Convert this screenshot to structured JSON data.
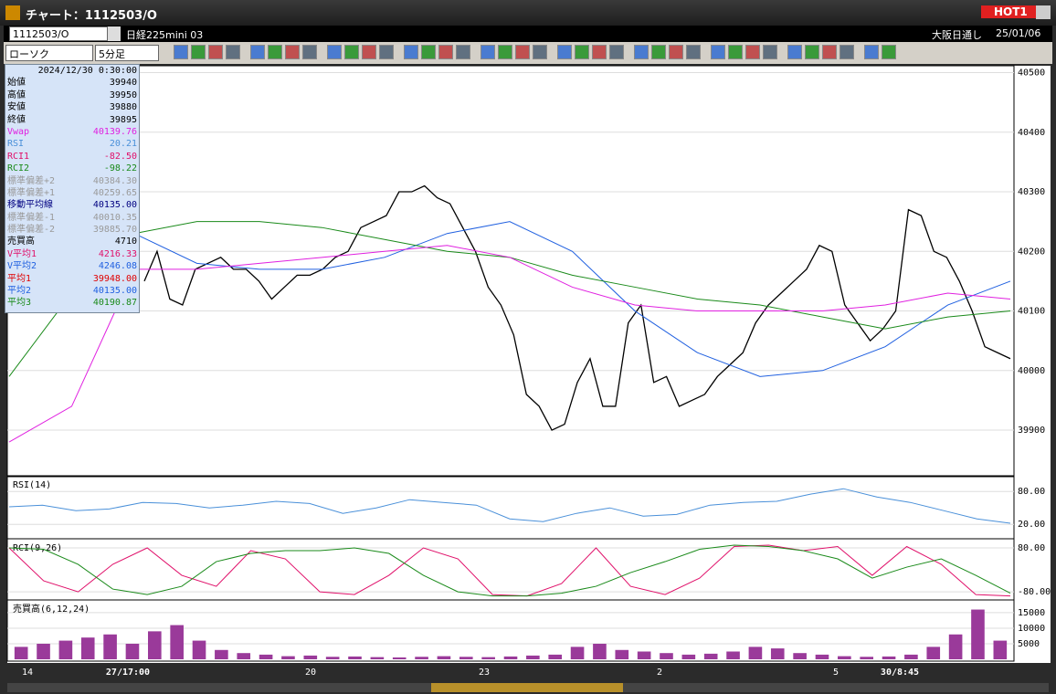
{
  "window": {
    "title": "チャート：1112503/O",
    "badge": "HOT1"
  },
  "toolbar": {
    "symbol": "1112503/O",
    "instrument": "日経225mini 03",
    "session": "大阪日通し",
    "date": "25/01/06",
    "chart_style": "ローソク",
    "interval": "5分足"
  },
  "info_panel": {
    "datetime": "2024/12/30 0:30:00",
    "rows": [
      {
        "label": "始値",
        "value": "39940",
        "color": "#000000"
      },
      {
        "label": "高値",
        "value": "39950",
        "color": "#000000"
      },
      {
        "label": "安値",
        "value": "39880",
        "color": "#000000"
      },
      {
        "label": "終値",
        "value": "39895",
        "color": "#000000"
      },
      {
        "label": "Vwap",
        "value": "40139.76",
        "color": "#e020e0"
      },
      {
        "label": "RSI",
        "value": "20.21",
        "color": "#4a90d9"
      },
      {
        "label": "RCI1",
        "value": "-82.50",
        "color": "#e0106a"
      },
      {
        "label": "RCI2",
        "value": "-98.22",
        "color": "#1a8a1a"
      },
      {
        "label": "標準偏差+2",
        "value": "40384.30",
        "color": "#9a9a9a"
      },
      {
        "label": "標準偏差+1",
        "value": "40259.65",
        "color": "#9a9a9a"
      },
      {
        "label": "移動平均線",
        "value": "40135.00",
        "color": "#000080"
      },
      {
        "label": "標準偏差-1",
        "value": "40010.35",
        "color": "#9a9a9a"
      },
      {
        "label": "標準偏差-2",
        "value": "39885.70",
        "color": "#9a9a9a"
      },
      {
        "label": "売買高",
        "value": "4710",
        "color": "#000000"
      },
      {
        "label": "V平均1",
        "value": "4216.33",
        "color": "#e0106a"
      },
      {
        "label": "V平均2",
        "value": "4246.08",
        "color": "#2060e0"
      },
      {
        "label": "平均1",
        "value": "39948.00",
        "color": "#e00000"
      },
      {
        "label": "平均2",
        "value": "40135.00",
        "color": "#2060e0"
      },
      {
        "label": "平均3",
        "value": "40190.87",
        "color": "#1a8a1a"
      }
    ]
  },
  "time_axis": {
    "labels": [
      "14",
      "27/17:00",
      "20",
      "23",
      "2",
      "5",
      "30/8:45"
    ]
  },
  "chart_data": [
    {
      "type": "line",
      "ylim": [
        39825,
        40510
      ],
      "yticks": [
        39900,
        40000,
        40100,
        40200,
        40300,
        40400,
        40500
      ],
      "series": [
        {
          "color": "#000000",
          "values": [
            40150,
            40200,
            40120,
            40110,
            40170,
            40180,
            40190,
            40170,
            40170,
            40150,
            40120,
            40140,
            40160,
            40160,
            40170,
            40190,
            40200,
            40240,
            40250,
            40260,
            40300,
            40300,
            40310,
            40290,
            40280,
            40240,
            40200,
            40140,
            40110,
            40060,
            39960,
            39940,
            39900,
            39910,
            39980,
            40020,
            39940,
            39940,
            40080,
            40110,
            39980,
            39990,
            39940,
            39950,
            39960,
            39990,
            40010,
            40030,
            40080,
            40110,
            40130,
            40150,
            40170,
            40210,
            40200,
            40110,
            40080,
            40050,
            40070,
            40100,
            40270,
            40260,
            40200,
            40190,
            40150,
            40100,
            40040,
            40030,
            40020
          ]
        },
        {
          "color": "#2060e0",
          "values": [
            40340,
            40300,
            40230,
            40180,
            40170,
            40170,
            40190,
            40230,
            40250,
            40200,
            40100,
            40030,
            39990,
            40000,
            40040,
            40110,
            40150
          ]
        },
        {
          "color": "#1a8a1a",
          "values": [
            39990,
            40130,
            40230,
            40250,
            40250,
            40240,
            40220,
            40200,
            40190,
            40160,
            40140,
            40120,
            40110,
            40090,
            40070,
            40090,
            40100
          ]
        },
        {
          "color": "#e020e0",
          "values": [
            39880,
            39940,
            40170,
            40170,
            40180,
            40190,
            40200,
            40210,
            40190,
            40140,
            40110,
            40100,
            40100,
            40100,
            40110,
            40130,
            40120
          ]
        }
      ]
    },
    {
      "type": "line",
      "title": "RSI(14)",
      "ylim": [
        -3,
        107
      ],
      "yticks": [
        {
          "value": 80,
          "label": "80.00"
        },
        {
          "value": 20,
          "label": "20.00"
        }
      ],
      "series": [
        {
          "color": "#4a90d9",
          "values": [
            52,
            55,
            45,
            48,
            60,
            58,
            50,
            55,
            62,
            58,
            40,
            50,
            65,
            60,
            55,
            30,
            25,
            40,
            50,
            35,
            38,
            55,
            60,
            62,
            75,
            85,
            70,
            60,
            45,
            30,
            22
          ]
        }
      ]
    },
    {
      "type": "line",
      "title": "RCI(9,26)",
      "ylim": [
        -103,
        110
      ],
      "yticks": [
        {
          "value": 80,
          "label": "80.00"
        },
        {
          "value": -80,
          "label": "-80.00"
        }
      ],
      "series": [
        {
          "color": "#e0106a",
          "values": [
            80,
            -40,
            -80,
            20,
            80,
            -20,
            -60,
            70,
            40,
            -80,
            -90,
            -20,
            80,
            40,
            -90,
            -95,
            -50,
            80,
            -60,
            -90,
            -30,
            85,
            90,
            70,
            85,
            -20,
            85,
            20,
            -90,
            -95
          ]
        },
        {
          "color": "#1a8a1a",
          "values": [
            80,
            75,
            20,
            -70,
            -90,
            -60,
            30,
            60,
            70,
            70,
            80,
            60,
            -20,
            -80,
            -95,
            -95,
            -85,
            -60,
            -10,
            30,
            75,
            90,
            85,
            70,
            40,
            -30,
            10,
            40,
            -20,
            -85
          ]
        }
      ]
    },
    {
      "type": "bar",
      "title": "売買高(6,12,24)",
      "ylim": [
        0,
        18800
      ],
      "yticks": [
        5000,
        10000,
        15000
      ],
      "color": "#9a3a9a",
      "values": [
        4000,
        5000,
        6000,
        7000,
        8000,
        5000,
        9000,
        11000,
        6000,
        3000,
        2000,
        1500,
        1000,
        1200,
        800,
        900,
        700,
        600,
        800,
        1000,
        800,
        700,
        900,
        1200,
        1500,
        4000,
        5000,
        3000,
        2500,
        2000,
        1500,
        1800,
        2500,
        4000,
        3500,
        2000,
        1500,
        1000,
        800,
        900,
        1500,
        4000,
        8000,
        16000,
        6000
      ]
    }
  ]
}
